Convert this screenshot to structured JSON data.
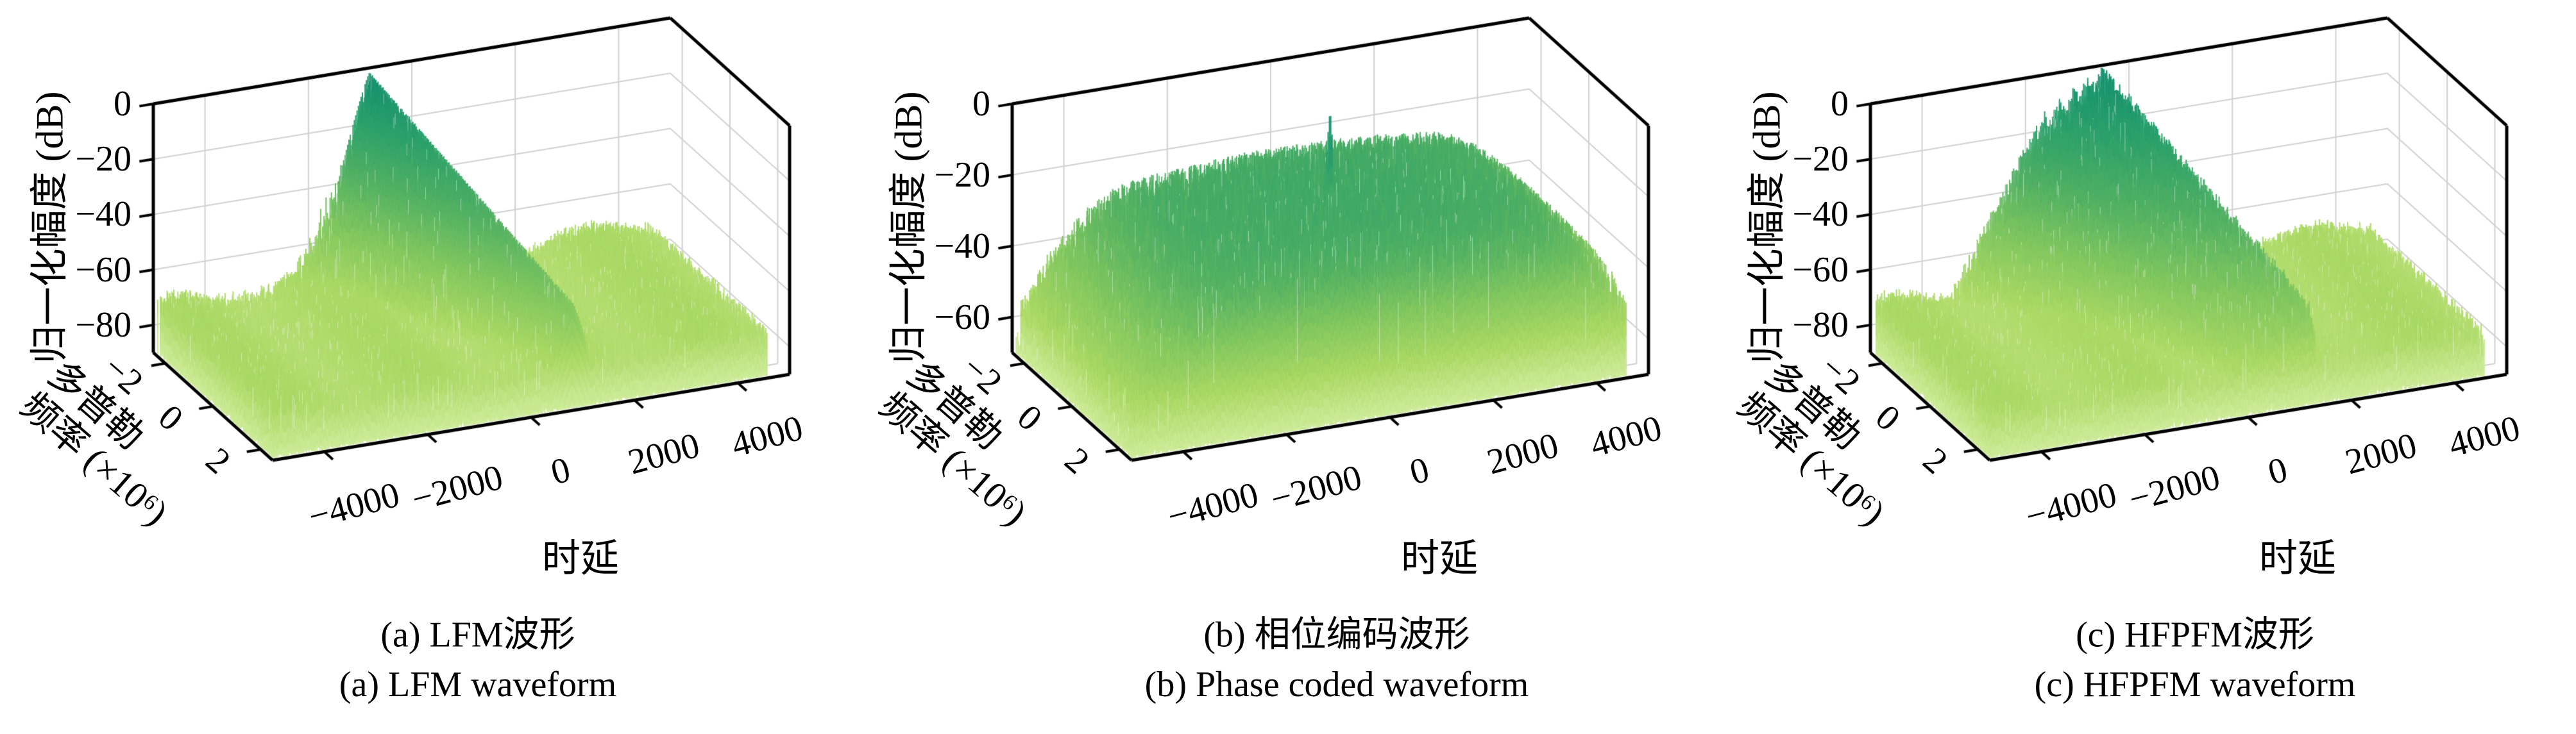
{
  "page": {
    "background": "#ffffff",
    "figure_type": "three 3D ambiguity-function surface plots"
  },
  "chart_data": [
    {
      "type": "surface3d",
      "id": "a",
      "caption_line1": "(a) LFM波形",
      "caption_line2": "(a) LFM waveform",
      "axes": {
        "z_label": "归一化幅度 (dB)",
        "x_label": "时延",
        "y_label_line1": "多普勒",
        "y_label_line2": "频率 (×10⁶)",
        "z_ticks": [
          "0",
          "−20",
          "−40",
          "−60",
          "−80"
        ],
        "z_tick_values": [
          0,
          -20,
          -40,
          -60,
          -80
        ],
        "z_min": -90,
        "z_max": 0,
        "x_ticks": [
          "−4000",
          "−2000",
          "0",
          "2000",
          "4000"
        ],
        "x_tick_values": [
          -4000,
          -2000,
          0,
          2000,
          4000
        ],
        "x_range": [
          -5000,
          5000
        ],
        "y_ticks": [
          "−2",
          "0",
          "2"
        ],
        "y_tick_values": [
          -2,
          0,
          2
        ],
        "y_range": [
          -2.5,
          2.5
        ],
        "grid": true
      },
      "surface": {
        "kind": "lfm_ridge",
        "description": "diagonal knife-edge ridge, 0 dB peak at back doppler edge decaying toward front",
        "floor_db": -73,
        "floor_noise_db": 3.2,
        "floor_wave_db": 2.2,
        "ridge_delay_per_doppler": 350,
        "peak_back_db": 0,
        "peak_slope_db_per_mhz": 10.5,
        "mainlobe_div": 26,
        "comb_period": 100,
        "seed": 11
      }
    },
    {
      "type": "surface3d",
      "id": "b",
      "caption_line1": "(b) 相位编码波形",
      "caption_line2": "(b) Phase coded waveform",
      "axes": {
        "z_label": "归一化幅度 (dB)",
        "x_label": "时延",
        "y_label_line1": "多普勒",
        "y_label_line2": "频率 (×10⁶)",
        "z_ticks": [
          "0",
          "−20",
          "−40",
          "−60"
        ],
        "z_tick_values": [
          0,
          -20,
          -40,
          -60
        ],
        "z_min": -70,
        "z_max": 0,
        "x_ticks": [
          "−4000",
          "−2000",
          "0",
          "2000",
          "4000"
        ],
        "x_tick_values": [
          -4000,
          -2000,
          0,
          2000,
          4000
        ],
        "x_range": [
          -5000,
          5000
        ],
        "y_ticks": [
          "−2",
          "0",
          "2"
        ],
        "y_tick_values": [
          -2,
          0,
          2
        ],
        "y_range": [
          -2.5,
          2.5
        ],
        "grid": true
      },
      "surface": {
        "kind": "thumbtack",
        "description": "noisy sidelobe plateau with single narrow 0 dB spike at (0,0)",
        "plateau_db": -25,
        "noise_db": 14,
        "edge_taper_start": 3000,
        "edge_taper_db": 20,
        "spike_delay_halfwidth": 100,
        "spike_peak_db": 0,
        "seed": 29
      }
    },
    {
      "type": "surface3d",
      "id": "c",
      "caption_line1": "(c) HFPFM波形",
      "caption_line2": "(c) HFPFM waveform",
      "axes": {
        "z_label": "归一化幅度 (dB)",
        "x_label": "时延",
        "y_label_line1": "多普勒",
        "y_label_line2": "频率 (×10⁶)",
        "z_ticks": [
          "0",
          "−20",
          "−40",
          "−60",
          "−80"
        ],
        "z_tick_values": [
          0,
          -20,
          -40,
          -60,
          -80
        ],
        "z_min": -90,
        "z_max": 0,
        "x_ticks": [
          "−4000",
          "−2000",
          "0",
          "2000",
          "4000"
        ],
        "x_tick_values": [
          -4000,
          -2000,
          0,
          2000,
          4000
        ],
        "x_range": [
          -5000,
          5000
        ],
        "y_ticks": [
          "−2",
          "0",
          "2"
        ],
        "y_tick_values": [
          -2,
          0,
          2
        ],
        "y_range": [
          -2.5,
          2.5
        ],
        "grid": true
      },
      "surface": {
        "kind": "block_ridge",
        "description": "wide blocky diagonal ridge, pointed 0 dB peak at back, steep teal faces",
        "floor_db": -73,
        "floor_noise_db": 3.2,
        "floor_wave_db": 2.2,
        "ridge_delay_per_doppler": 350,
        "block_left": -900,
        "block_right": 380,
        "peak_back_db": 0,
        "peak_slope_db_per_mhz": 10.5,
        "seed": 47
      }
    }
  ],
  "style": {
    "colormap_stops": [
      "#cfec9c",
      "#abd964",
      "#82c75f",
      "#52b163",
      "#2ba06b",
      "#0e8d6e"
    ],
    "box_edge_color": "#000000",
    "grid_color": "#d0d0d0"
  }
}
